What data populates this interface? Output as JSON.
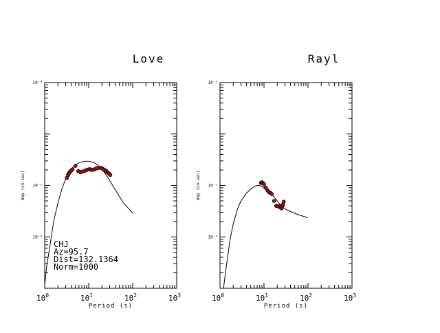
{
  "chart_data": [
    {
      "type": "line",
      "title": "Love",
      "xlabel": "Period (s)",
      "ylabel": "Amp (cm-sec)",
      "x_scale": "log",
      "y_scale": "log",
      "xlim": [
        1,
        1000
      ],
      "ylim": [
        1e-07,
        0.001
      ],
      "x_tick_labels": [
        {
          "base": "10",
          "exp": "0"
        },
        {
          "base": "10",
          "exp": "1"
        },
        {
          "base": "10",
          "exp": "2"
        },
        {
          "base": "10",
          "exp": "3"
        }
      ],
      "y_tick_labels": [
        "10⁻³",
        "10⁻⁵",
        "10⁻⁶"
      ],
      "annotations": [
        "CHJ",
        "Az=95.7",
        "Dist=132.1364",
        "Norm=1000"
      ],
      "marker_color": "#b01010",
      "series": [
        {
          "kind": "line",
          "x": [
            1.0,
            1.1,
            1.3,
            1.6,
            2.0,
            2.5,
            3.0,
            4.0,
            5.0,
            6.0,
            8.0,
            10.0,
            13.0,
            16.0,
            20.0,
            25.0,
            30.0,
            40.0,
            60.0,
            100.0
          ],
          "y": [
            1.12e-07,
            2.5e-07,
            6.3e-07,
            2e-06,
            4.6e-06,
            8.9e-06,
            1.35e-05,
            2.1e-05,
            2.5e-05,
            2.75e-05,
            2.95e-05,
            2.95e-05,
            2.8e-05,
            2.5e-05,
            2.05e-05,
            1.6e-05,
            1.25e-05,
            8.3e-06,
            4.7e-06,
            2.9e-06
          ]
        },
        {
          "kind": "scatter",
          "x": [
            3.2,
            3.4,
            3.6,
            3.8,
            4.0,
            4.3,
            5.0,
            5.8,
            6.5,
            7.0,
            8.0,
            9.0,
            10.0,
            11.0,
            12.0,
            13.5,
            15.0,
            17.0,
            19.0,
            21.0,
            23.0,
            25.0,
            27.0,
            29.0,
            31.0
          ],
          "y": [
            1.4e-05,
            1.6e-05,
            1.75e-05,
            1.85e-05,
            1.95e-05,
            2.05e-05,
            2.4e-05,
            1.9e-05,
            1.8e-05,
            1.85e-05,
            1.9e-05,
            2e-05,
            2.05e-05,
            2.05e-05,
            2e-05,
            2.05e-05,
            2.15e-05,
            2.2e-05,
            2.2e-05,
            2.1e-05,
            2e-05,
            1.9e-05,
            1.8e-05,
            1.7e-05,
            1.6e-05
          ]
        }
      ]
    },
    {
      "type": "line",
      "title": "Rayl",
      "xlabel": "Period (s)",
      "ylabel": "Amp (cm-sec)",
      "x_scale": "log",
      "y_scale": "log",
      "xlim": [
        1,
        1000
      ],
      "ylim": [
        1e-07,
        0.001
      ],
      "x_tick_labels": [
        {
          "base": "10",
          "exp": "0"
        },
        {
          "base": "10",
          "exp": "1"
        },
        {
          "base": "10",
          "exp": "2"
        },
        {
          "base": "10",
          "exp": "3"
        }
      ],
      "y_tick_labels": [
        "10⁻³",
        "10⁻⁵",
        "10⁻⁶"
      ],
      "marker_color": "#b01010",
      "series": [
        {
          "kind": "line",
          "x": [
            1.2,
            1.4,
            1.7,
            2.0,
            2.5,
            3.0,
            4.0,
            5.0,
            6.0,
            7.0,
            8.0,
            9.0,
            10.0,
            12.0,
            14.0,
            16.0,
            18.0,
            20.0,
            22.0,
            25.0,
            30.0,
            40.0,
            60.0,
            100.0
          ],
          "y": [
            1e-07,
            2.8e-07,
            8.9e-07,
            1.8e-06,
            3.5e-06,
            5e-06,
            7.1e-06,
            8.5e-06,
            9.5e-06,
            1e-05,
            1e-05,
            9.5e-06,
            8.9e-06,
            7.9e-06,
            7.1e-06,
            6.3e-06,
            5.6e-06,
            5e-06,
            4.5e-06,
            3.9e-06,
            3.5e-06,
            3.1e-06,
            2.7e-06,
            2.35e-06
          ]
        },
        {
          "kind": "scatter",
          "x": [
            8.5,
            9.0,
            9.5,
            10.0,
            11.0,
            12.0,
            13.0,
            14.0,
            15.0,
            17.0,
            19.0,
            21.0,
            23.0,
            24.0,
            25.0,
            26.0,
            27.0,
            28.0
          ],
          "y": [
            1.12e-05,
            1.15e-05,
            1.1e-05,
            1.05e-05,
            9e-06,
            8e-06,
            7.4e-06,
            7.2e-06,
            6.8e-06,
            5e-06,
            4e-06,
            3.9e-06,
            4e-06,
            3.7e-06,
            3.6e-06,
            3.9e-06,
            4.2e-06,
            4.8e-06
          ]
        }
      ]
    }
  ]
}
